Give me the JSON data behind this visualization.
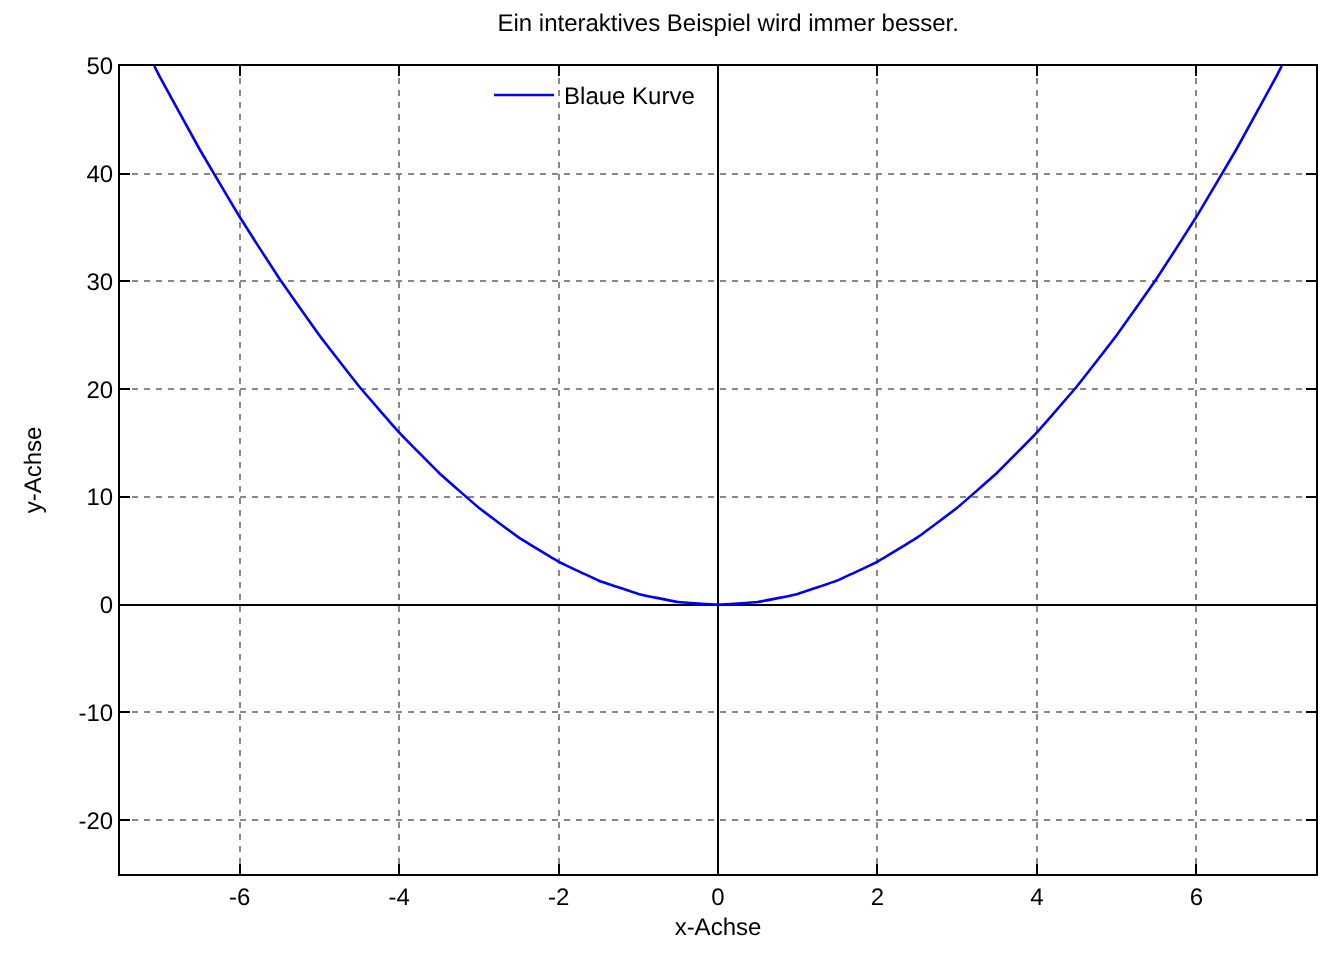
{
  "chart_data": {
    "type": "line",
    "title": "Ein interaktives Beispiel wird immer besser.",
    "xlabel": "x-Achse",
    "ylabel": "y-Achse",
    "x": [
      -7.07,
      -7,
      -6.5,
      -6,
      -5.5,
      -5,
      -4.5,
      -4,
      -3.5,
      -3,
      -2.5,
      -2,
      -1.5,
      -1,
      -0.5,
      0,
      0.5,
      1,
      1.5,
      2,
      2.5,
      3,
      3.5,
      4,
      4.5,
      5,
      5.5,
      6,
      6.5,
      7,
      7.07
    ],
    "series": [
      {
        "name": "Blaue Kurve",
        "color": "#0000ff",
        "values": [
          50,
          49,
          42.25,
          36,
          30.25,
          25,
          20.25,
          16,
          12.25,
          9,
          6.25,
          4,
          2.25,
          1,
          0.25,
          0,
          0.25,
          1,
          2.25,
          4,
          6.25,
          9,
          12.25,
          16,
          20.25,
          25,
          30.25,
          36,
          42.25,
          49,
          50
        ]
      }
    ],
    "xlim": [
      -7.5,
      7.5
    ],
    "ylim": [
      -25,
      50
    ],
    "xticks": [
      -6,
      -4,
      -2,
      0,
      2,
      4,
      6
    ],
    "yticks": [
      -20,
      -10,
      0,
      10,
      20,
      30,
      40,
      50
    ],
    "grid": true,
    "legend": "top",
    "marker": "none",
    "line_style": "solid"
  }
}
